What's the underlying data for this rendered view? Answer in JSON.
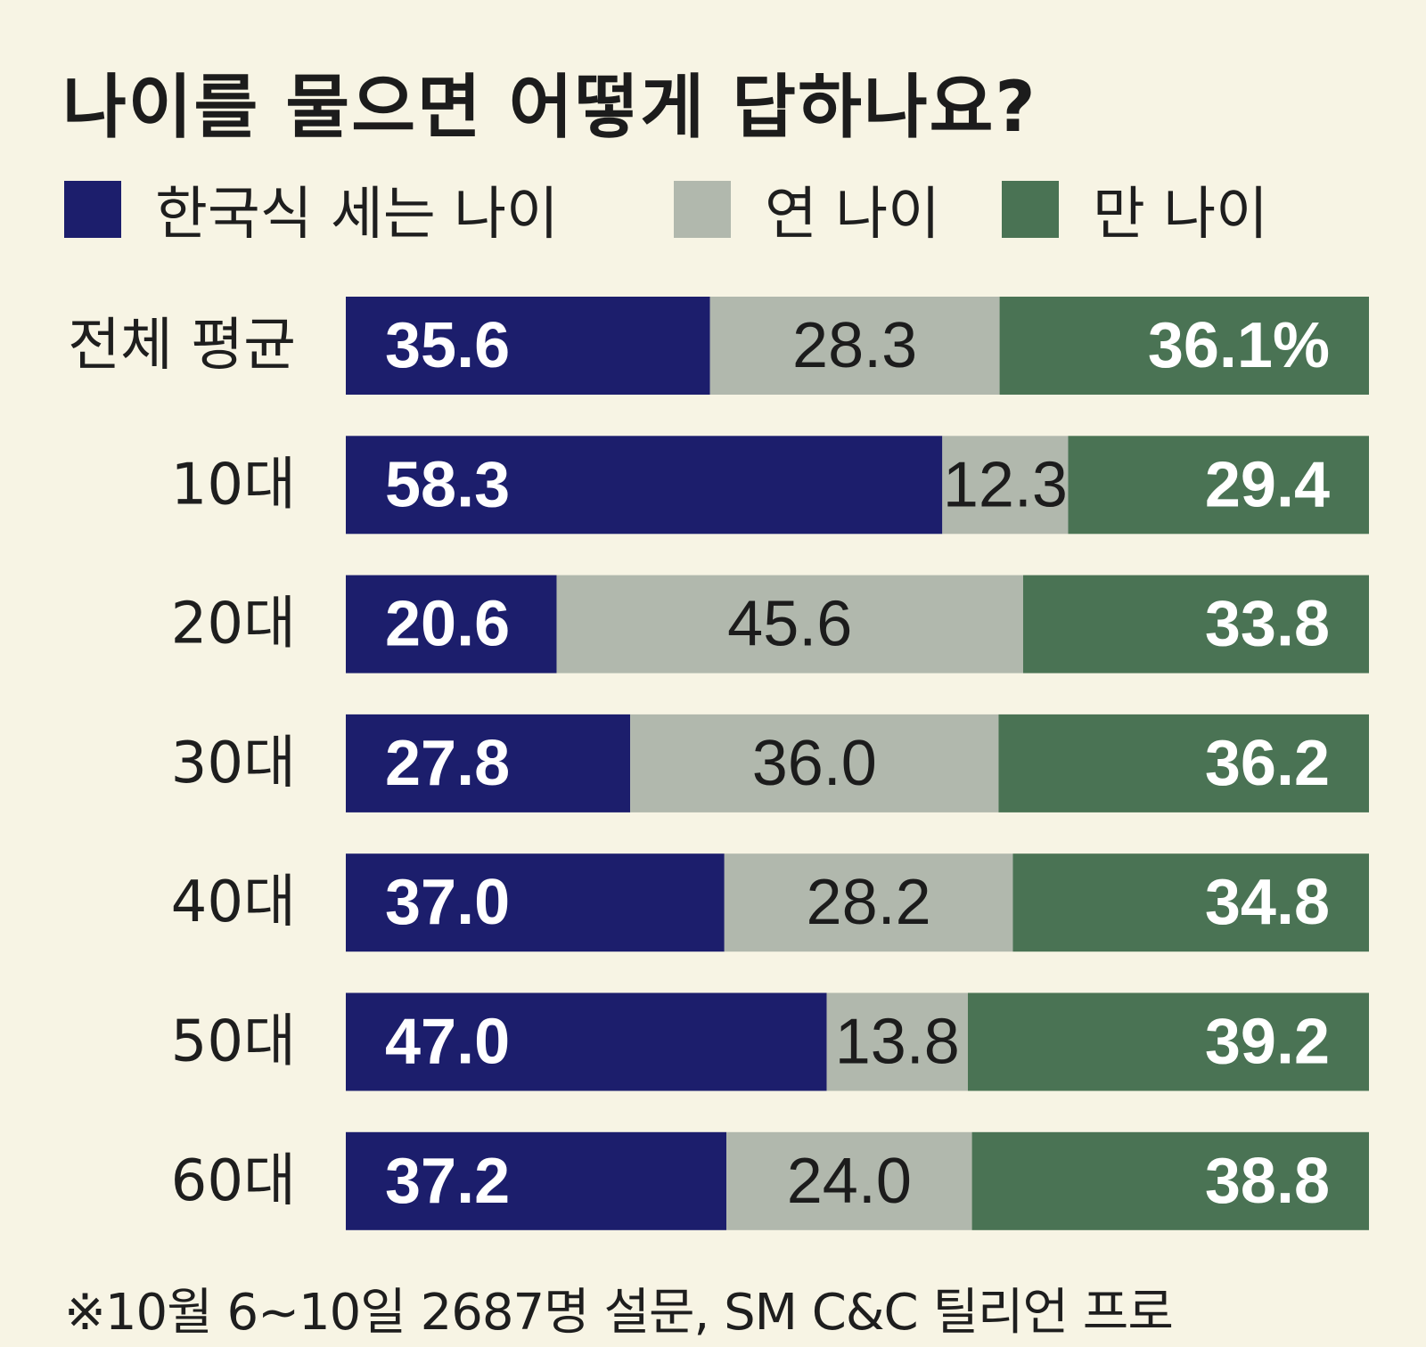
{
  "title": "나이를 물으면 어떻게 답하나요?",
  "footnote": "※10월 6~10일 2687명 설문, SM C&C 틸리언 프로",
  "chart_data": {
    "type": "bar",
    "stacked": true,
    "orientation": "horizontal",
    "title": "나이를 물으면 어떻게 답하나요?",
    "unit": "%",
    "categories": [
      "전체 평균",
      "10대",
      "20대",
      "30대",
      "40대",
      "50대",
      "60대"
    ],
    "series": [
      {
        "name": "한국식 세는 나이",
        "color": "#1c1e6c",
        "values": [
          35.6,
          58.3,
          20.6,
          27.8,
          37.0,
          47.0,
          37.2
        ],
        "labels": [
          "35.6",
          "58.3",
          "20.6",
          "27.8",
          "37.0",
          "47.0",
          "37.2"
        ]
      },
      {
        "name": "연 나이",
        "color": "#b1b8ad",
        "values": [
          28.3,
          12.3,
          45.6,
          36.0,
          28.2,
          13.8,
          24.0
        ],
        "labels": [
          "28.3",
          "12.3",
          "45.6",
          "36.0",
          "28.2",
          "13.8",
          "24.0"
        ]
      },
      {
        "name": "만 나이",
        "color": "#4a7354",
        "values": [
          36.1,
          29.4,
          33.8,
          36.2,
          34.8,
          39.2,
          38.8
        ],
        "labels": [
          "36.1%",
          "29.4",
          "33.8",
          "36.2",
          "34.8",
          "39.2",
          "38.8"
        ]
      }
    ],
    "legend_position": "top-left",
    "grid": false
  }
}
